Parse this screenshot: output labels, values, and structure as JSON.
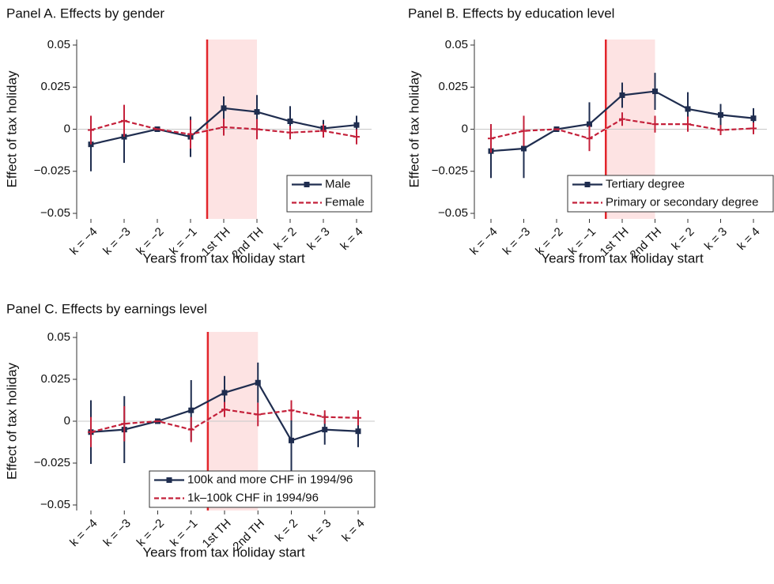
{
  "chart_data": [
    {
      "type": "line",
      "title": "Panel A. Effects by gender",
      "x_label": "Years from tax holiday start",
      "y_label": "Effect of tax holiday",
      "categories": [
        "k = −4",
        "k = −3",
        "k = −2",
        "k = −1",
        "1st TH",
        "2nd TH",
        "k = 2",
        "k = 3",
        "k = 4"
      ],
      "series": [
        {
          "name": "Male",
          "color": "#1f2d4f",
          "dashed": false,
          "marker": true,
          "values": [
            -0.009,
            -0.0045,
            0,
            -0.0045,
            0.0125,
            0.0103,
            0.0047,
            0.0005,
            0.0025
          ],
          "errors": [
            0.016,
            0.0155,
            0,
            0.012,
            0.007,
            0.01,
            0.009,
            0.005,
            0.0055
          ]
        },
        {
          "name": "Female",
          "color": "#c4203a",
          "dashed": true,
          "marker": false,
          "values": [
            -0.0005,
            0.005,
            0,
            -0.003,
            0.0012,
            0,
            -0.002,
            -0.001,
            -0.0045
          ],
          "errors": [
            0.0085,
            0.0095,
            0,
            0.0085,
            0.005,
            0.006,
            0.004,
            0.004,
            0.0045
          ]
        }
      ],
      "ylim": [
        -0.05,
        0.05
      ],
      "yticks": [
        {
          "value": -0.05,
          "label": "−0.05"
        },
        {
          "value": -0.025,
          "label": "−0.025"
        },
        0,
        0.025,
        0.05
      ],
      "zero_line": true,
      "legend_position": "lower right"
    },
    {
      "type": "line",
      "title": "Panel B. Effects by education level",
      "x_label": "Years from tax holiday start",
      "y_label": "Effect of tax holiday",
      "categories": [
        "k = −4",
        "k = −3",
        "k = −2",
        "k = −1",
        "1st TH",
        "2nd TH",
        "k = 2",
        "k = 3",
        "k = 4"
      ],
      "series": [
        {
          "name": "Tertiary degree",
          "color": "#1f2d4f",
          "dashed": false,
          "marker": true,
          "values": [
            -0.013,
            -0.0115,
            0,
            0.003,
            0.0202,
            0.0225,
            0.012,
            0.0085,
            0.0065
          ],
          "errors": [
            0.016,
            0.0175,
            0,
            0.013,
            0.0075,
            0.011,
            0.01,
            0.0065,
            0.006
          ]
        },
        {
          "name": "Primary or secondary degree",
          "color": "#c4203a",
          "dashed": true,
          "marker": false,
          "values": [
            -0.0055,
            -0.001,
            0,
            -0.0055,
            0.006,
            0.003,
            0.003,
            -0.0005,
            0.0005
          ],
          "errors": [
            0.0085,
            0.009,
            0,
            0.0075,
            0.004,
            0.005,
            0.0045,
            0.003,
            0.0035
          ]
        }
      ],
      "ylim": [
        -0.05,
        0.05
      ],
      "yticks": [
        {
          "value": -0.05,
          "label": "−0.05"
        },
        {
          "value": -0.025,
          "label": "−0.025"
        },
        0,
        0.025,
        0.05
      ],
      "zero_line": true,
      "legend_position": "lower right"
    },
    {
      "type": "line",
      "title": "Panel C. Effects by earnings level",
      "x_label": "Years from tax holiday start",
      "y_label": "Effect of tax holiday",
      "categories": [
        "k = −4",
        "k = −3",
        "k = −2",
        "k = −1",
        "1st TH",
        "2nd TH",
        "k = 2",
        "k = 3",
        "k = 4"
      ],
      "series": [
        {
          "name": "100k and more CHF in 1994/96",
          "color": "#1f2d4f",
          "dashed": false,
          "marker": true,
          "values": [
            -0.0065,
            -0.005,
            0,
            0.0065,
            0.017,
            0.023,
            -0.0115,
            -0.005,
            -0.006
          ],
          "errors": [
            0.019,
            0.02,
            0,
            0.018,
            0.01,
            0.012,
            0.019,
            0.009,
            0.0095
          ]
        },
        {
          "name": "1k–100k CHF in 1994/96",
          "color": "#c4203a",
          "dashed": true,
          "marker": false,
          "values": [
            -0.0065,
            -0.0015,
            0,
            -0.005,
            0.007,
            0.004,
            0.0065,
            0.0025,
            0.002
          ],
          "errors": [
            0.009,
            0.0105,
            0,
            0.0075,
            0.0045,
            0.007,
            0.006,
            0.004,
            0.0045
          ]
        }
      ],
      "ylim": [
        -0.05,
        0.05
      ],
      "yticks": [
        {
          "value": -0.05,
          "label": "−0.05"
        },
        {
          "value": -0.025,
          "label": "−0.025"
        },
        0,
        0.025,
        0.05
      ],
      "zero_line": true,
      "legend_position": "lower left"
    }
  ]
}
